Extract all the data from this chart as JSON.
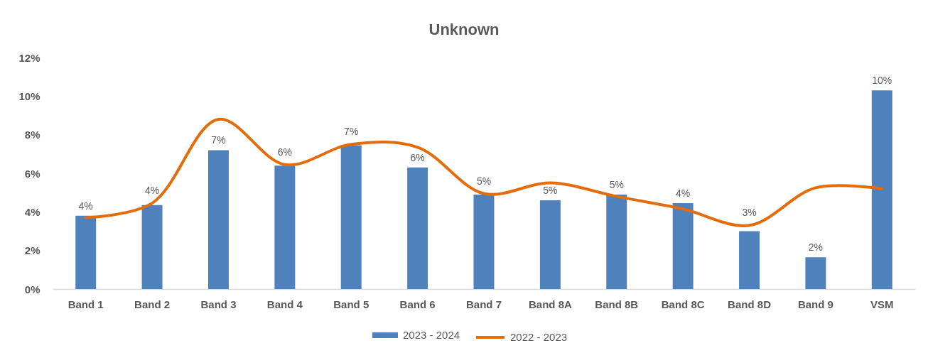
{
  "chart_data": {
    "type": "bar",
    "title": "Unknown",
    "categories": [
      "Band 1",
      "Band 2",
      "Band 3",
      "Band 4",
      "Band 5",
      "Band 6",
      "Band 7",
      "Band 8A",
      "Band 8B",
      "Band 8C",
      "Band 8D",
      "Band 9",
      "VSM"
    ],
    "series": [
      {
        "name": "2023 - 2024",
        "color": "#4f81bd",
        "values": [
          3.8,
          4.35,
          7.2,
          6.4,
          7.45,
          6.3,
          4.9,
          4.6,
          4.9,
          4.45,
          3.0,
          1.65,
          10.3
        ],
        "value_labels": [
          "4%",
          "4%",
          "7%",
          "6%",
          "7%",
          "6%",
          "5%",
          "5%",
          "5%",
          "4%",
          "3%",
          "2%",
          "10%"
        ]
      },
      {
        "name": "2022 - 2023",
        "type": "line",
        "color": "#e46c0a",
        "values": [
          3.7,
          4.45,
          8.8,
          6.45,
          7.5,
          7.35,
          4.95,
          5.5,
          4.8,
          4.15,
          3.3,
          5.25,
          5.2
        ]
      }
    ],
    "ylim": [
      0,
      12
    ],
    "yticks": [
      {
        "value": 0,
        "label": "0%"
      },
      {
        "value": 2,
        "label": "2%"
      },
      {
        "value": 4,
        "label": "4%"
      },
      {
        "value": 6,
        "label": "6%"
      },
      {
        "value": 8,
        "label": "8%"
      },
      {
        "value": 10,
        "label": "10%"
      },
      {
        "value": 12,
        "label": "12%"
      }
    ],
    "grid": false,
    "legend": "bottom"
  }
}
